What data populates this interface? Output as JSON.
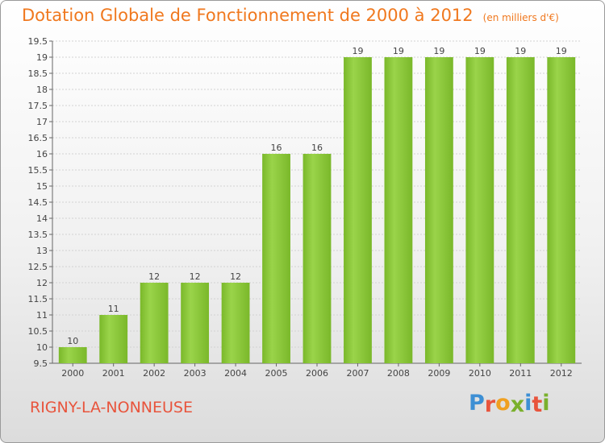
{
  "header": {
    "title": "Dotation Globale de Fonctionnement de 2000 à 2012",
    "unit": "(en milliers d'€)"
  },
  "footer": {
    "commune": "RIGNY-LA-NONNEUSE",
    "brand": "Proxiti",
    "brand_colors": [
      "#3d8fd4",
      "#e8543c",
      "#f0a020",
      "#7ab02c",
      "#3d8fd4",
      "#e8543c",
      "#7ab02c"
    ]
  },
  "chart_data": {
    "type": "bar",
    "categories": [
      "2000",
      "2001",
      "2002",
      "2003",
      "2004",
      "2005",
      "2006",
      "2007",
      "2008",
      "2009",
      "2010",
      "2011",
      "2012"
    ],
    "values": [
      10,
      11,
      12,
      12,
      12,
      16,
      16,
      19,
      19,
      19,
      19,
      19,
      19
    ],
    "data_labels": [
      "10",
      "11",
      "12",
      "12",
      "12",
      "16",
      "16",
      "19",
      "19",
      "19",
      "19",
      "19",
      "19"
    ],
    "yticks": [
      "9.5",
      "10",
      "10.5",
      "11",
      "11.5",
      "12",
      "12.5",
      "13",
      "13.5",
      "14",
      "14.5",
      "15",
      "15.5",
      "16",
      "16.5",
      "17",
      "17.5",
      "18",
      "18.5",
      "19",
      "19.5"
    ],
    "ylim": [
      9.5,
      19.5
    ],
    "grid": true,
    "bar_color": "#7ab82a",
    "bar_color_light": "#9ad44a"
  }
}
